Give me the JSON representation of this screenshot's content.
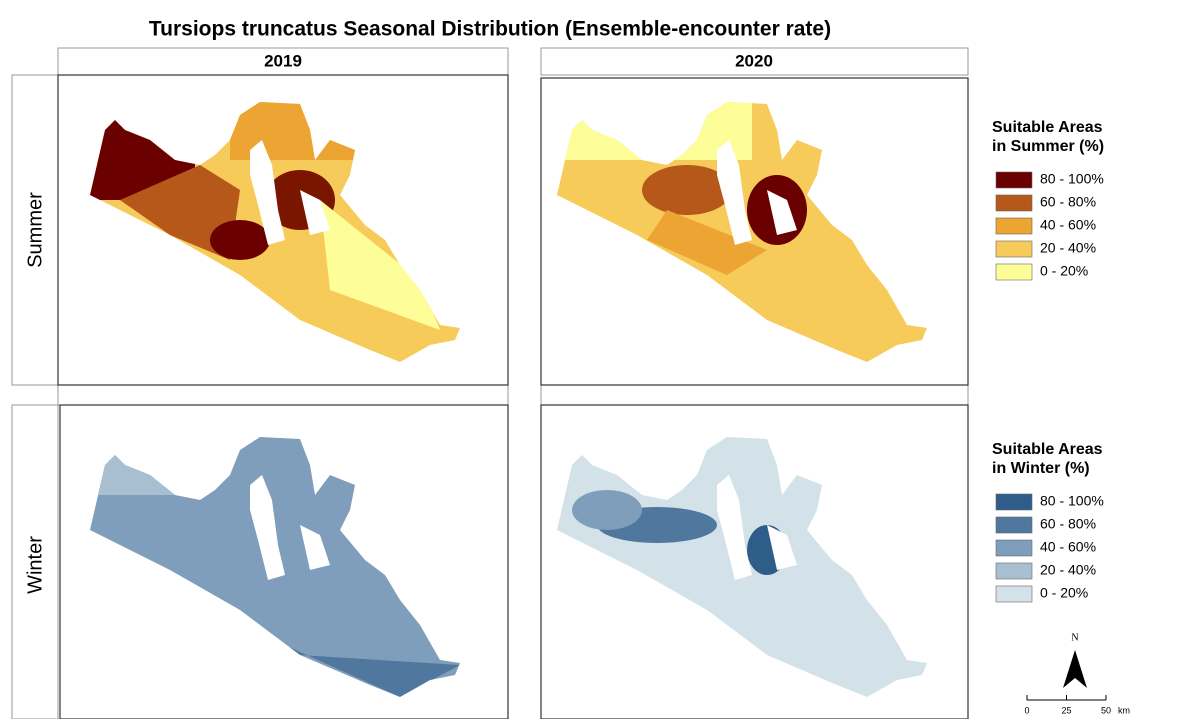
{
  "title": "Tursiops truncatus Seasonal Distribution (Ensemble-encounter rate)",
  "columns": [
    "2019",
    "2020"
  ],
  "rows": [
    "Summer",
    "Winter"
  ],
  "legends": [
    {
      "title_lines": [
        "Suitable Areas",
        "in Summer (%)"
      ],
      "items": [
        {
          "label": "80 - 100%",
          "color": "#6b0000"
        },
        {
          "label": "60 - 80%",
          "color": "#b5581a"
        },
        {
          "label": "40 - 60%",
          "color": "#eca432"
        },
        {
          "label": "20 - 40%",
          "color": "#f7cb5a"
        },
        {
          "label": "0 - 20%",
          "color": "#fefe98"
        }
      ]
    },
    {
      "title_lines": [
        "Suitable Areas",
        "in Winter (%)"
      ],
      "items": [
        {
          "label": "80 - 100%",
          "color": "#2e5d8a"
        },
        {
          "label": "60 - 80%",
          "color": "#50779d"
        },
        {
          "label": "40 - 60%",
          "color": "#7f9ebb"
        },
        {
          "label": "20 - 40%",
          "color": "#a7bfd1"
        },
        {
          "label": "0 - 20%",
          "color": "#d3e2e9"
        }
      ]
    }
  ],
  "north_arrow": "N",
  "scale_bar": {
    "ticks": [
      0,
      25,
      50
    ],
    "unit": "km"
  }
}
